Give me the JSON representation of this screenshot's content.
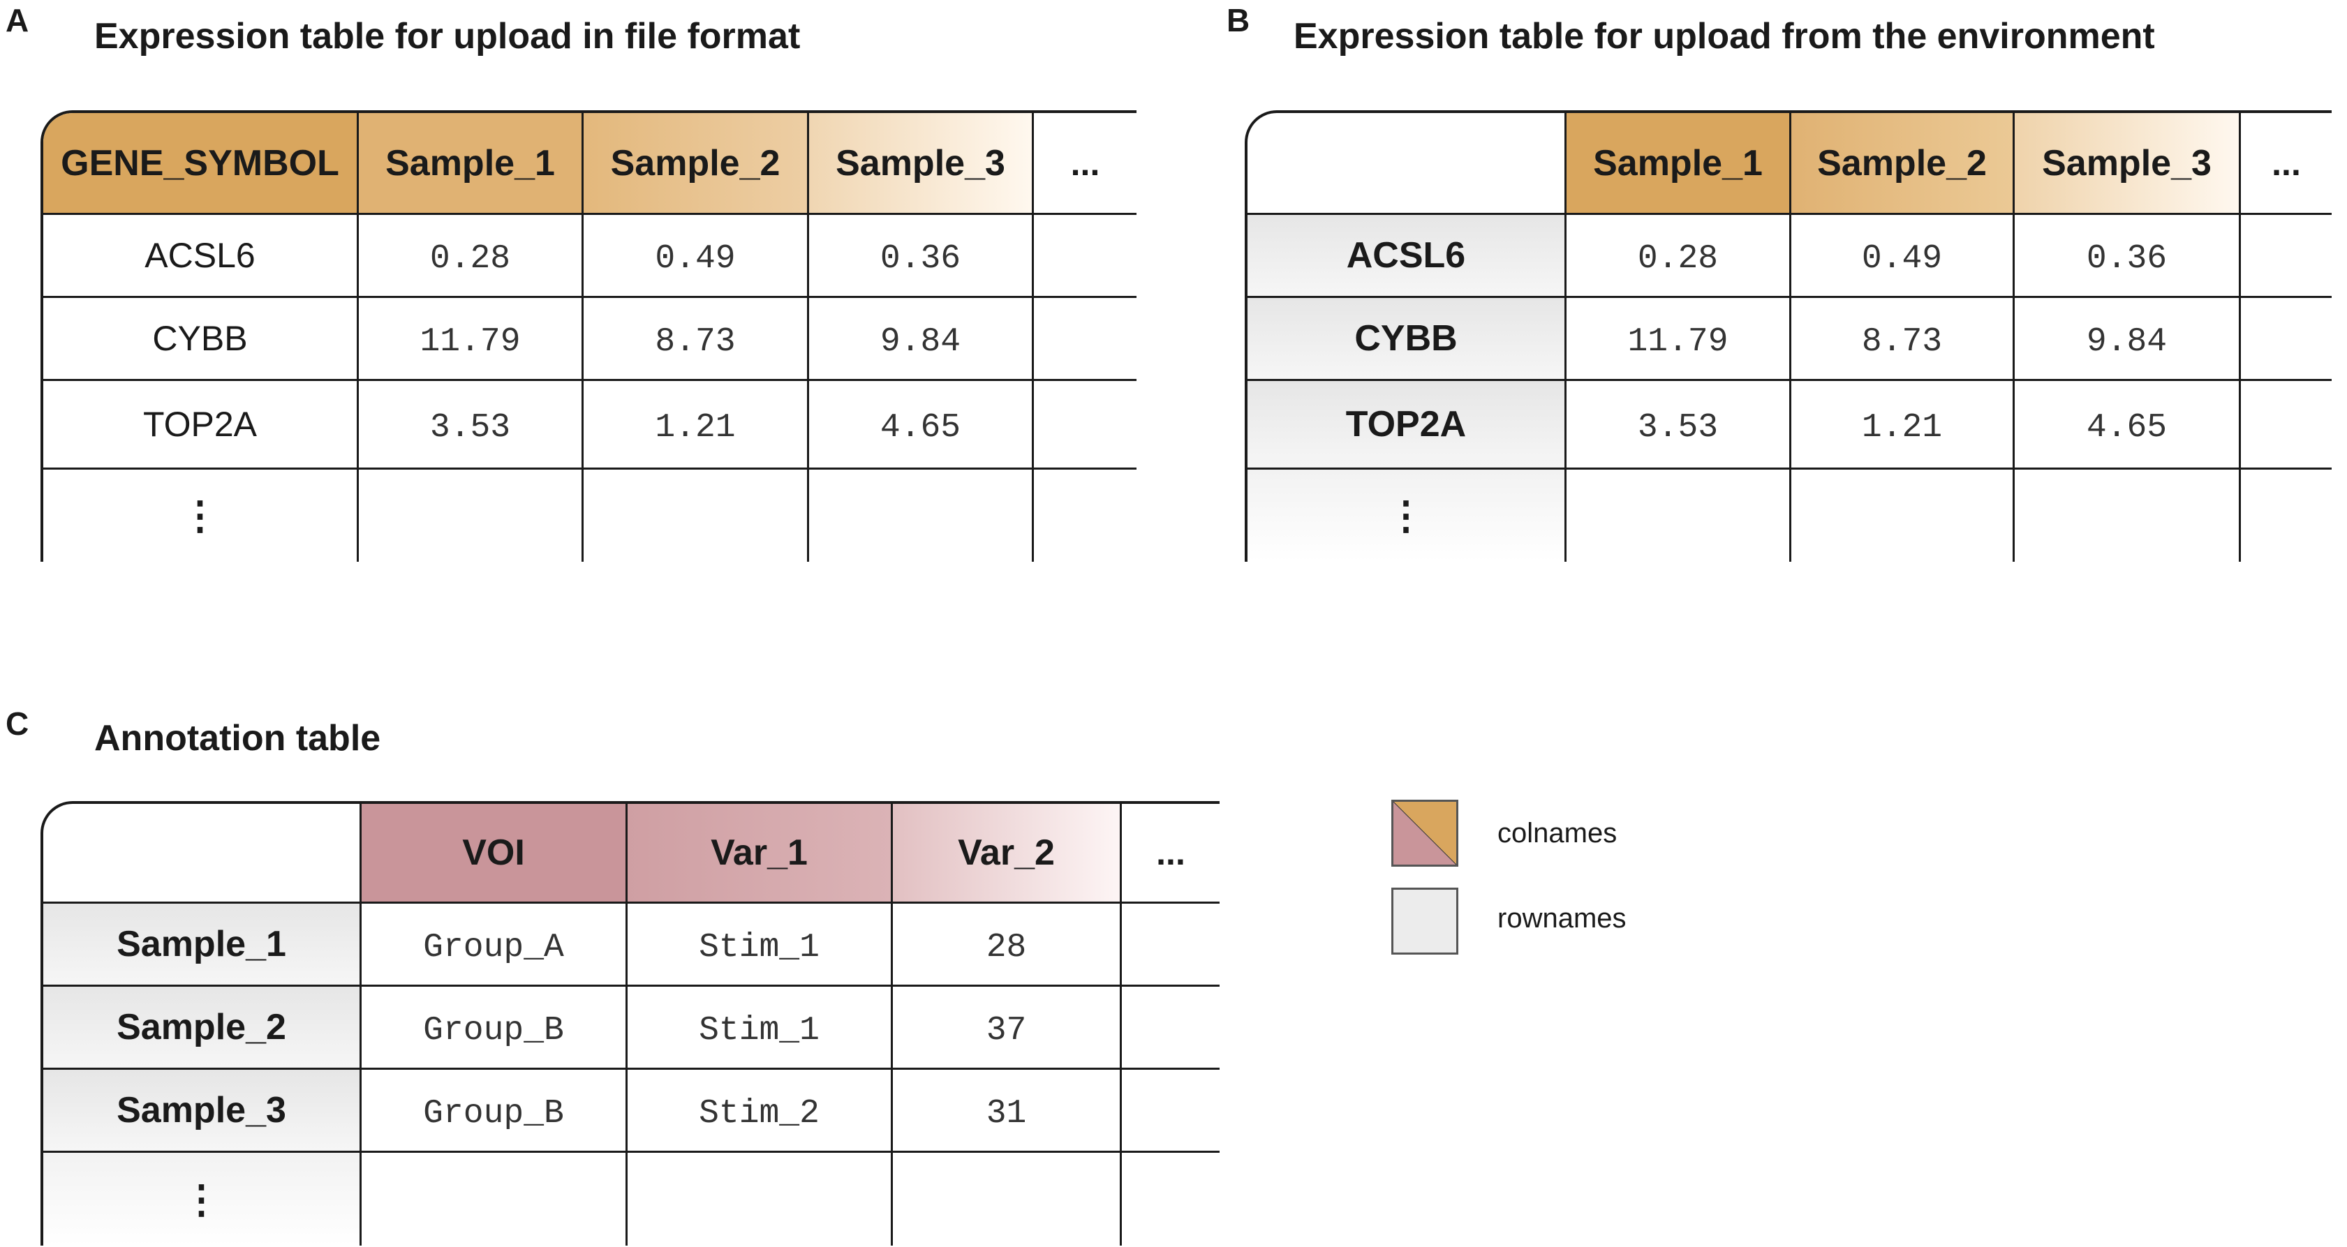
{
  "colors": {
    "expression_header": "#d9a65e",
    "annotation_header": "#c9959a",
    "rowname_bg": "#ececec"
  },
  "panelA": {
    "letter": "A",
    "title": "Expression table for upload in file format",
    "header": [
      "GENE_SYMBOL",
      "Sample_1",
      "Sample_2",
      "Sample_3",
      "..."
    ],
    "rows": [
      [
        "ACSL6",
        "0.28",
        "0.49",
        "0.36",
        ""
      ],
      [
        "CYBB",
        "11.79",
        "8.73",
        "9.84",
        ""
      ],
      [
        "TOP2A",
        "3.53",
        "1.21",
        "4.65",
        ""
      ],
      [
        "⋮",
        "",
        "",
        "",
        ""
      ]
    ]
  },
  "panelB": {
    "letter": "B",
    "title": "Expression table for upload from the environment",
    "header": [
      "",
      "Sample_1",
      "Sample_2",
      "Sample_3",
      "..."
    ],
    "rows": [
      [
        "ACSL6",
        "0.28",
        "0.49",
        "0.36",
        ""
      ],
      [
        "CYBB",
        "11.79",
        "8.73",
        "9.84",
        ""
      ],
      [
        "TOP2A",
        "3.53",
        "1.21",
        "4.65",
        ""
      ],
      [
        "⋮",
        "",
        "",
        "",
        ""
      ]
    ]
  },
  "panelC": {
    "letter": "C",
    "title": "Annotation table",
    "header": [
      "",
      "VOI",
      "Var_1",
      "Var_2",
      "..."
    ],
    "rows": [
      [
        "Sample_1",
        "Group_A",
        "Stim_1",
        "28",
        ""
      ],
      [
        "Sample_2",
        "Group_B",
        "Stim_1",
        "37",
        ""
      ],
      [
        "Sample_3",
        "Group_B",
        "Stim_2",
        "31",
        ""
      ],
      [
        "⋮",
        "",
        "",
        "",
        ""
      ]
    ]
  },
  "legend": {
    "colnames": "colnames",
    "rownames": "rownames"
  }
}
